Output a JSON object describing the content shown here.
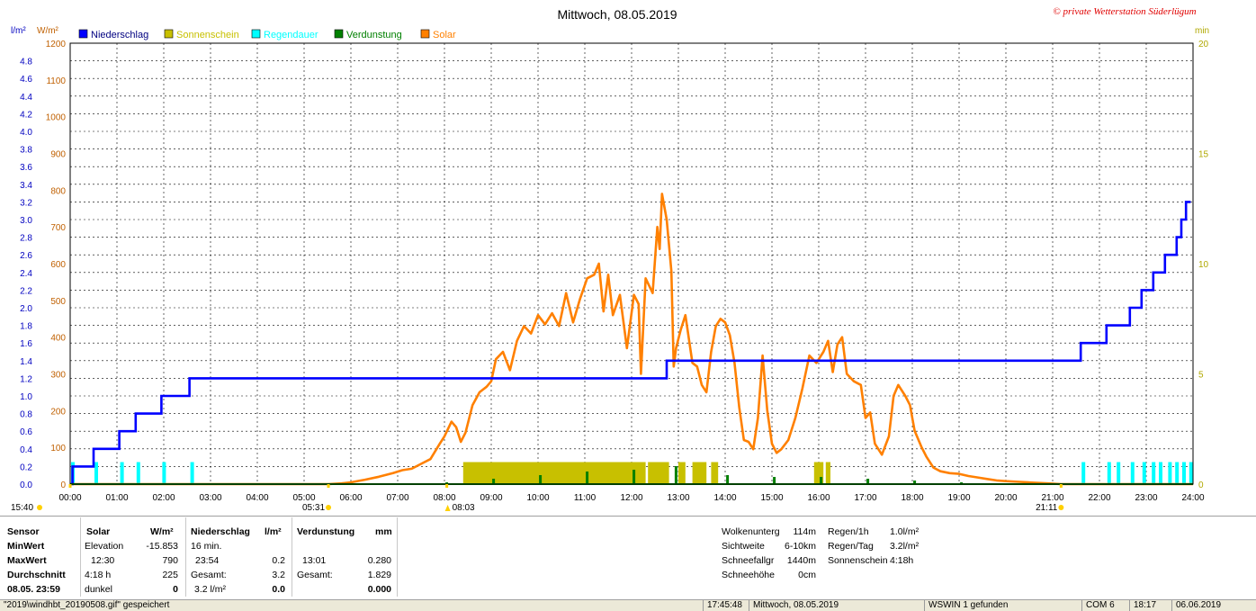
{
  "chart_data": {
    "type": "line",
    "title": "Mittwoch, 08.05.2019",
    "watermark": "© private Wetterstation Süderlügum",
    "legend": [
      {
        "name": "Niederschlag",
        "color": "#0000ff"
      },
      {
        "name": "Sonnenschein",
        "color": "#c8c000"
      },
      {
        "name": "Regendauer",
        "color": "#00ffff"
      },
      {
        "name": "Verdunstung",
        "color": "#008000"
      },
      {
        "name": "Solar",
        "color": "#ff8000"
      }
    ],
    "left_axis_rain": {
      "unit": "l/m²",
      "min": 0,
      "max": 5,
      "ticks": [
        "0.0",
        "0.2",
        "0.4",
        "0.6",
        "0.8",
        "1.0",
        "1.2",
        "1.4",
        "1.6",
        "1.8",
        "2.0",
        "2.2",
        "2.4",
        "2.6",
        "2.8",
        "3.0",
        "3.2",
        "3.4",
        "3.6",
        "3.8",
        "4.0",
        "4.2",
        "4.4",
        "4.6",
        "4.8"
      ],
      "color": "#0000c0"
    },
    "left_axis_solar": {
      "unit": "W/m²",
      "min": 0,
      "max": 1200,
      "ticks": [
        "0",
        "100",
        "200",
        "300",
        "400",
        "500",
        "600",
        "700",
        "800",
        "900",
        "1000",
        "1100",
        "1200"
      ],
      "color": "#c06000"
    },
    "right_axis": {
      "unit": "min",
      "min": 0,
      "max": 20,
      "ticks": [
        "0",
        "5",
        "10",
        "15",
        "20"
      ],
      "color": "#b0a800"
    },
    "x_ticks": [
      "00:00",
      "01:00",
      "02:00",
      "03:00",
      "04:00",
      "05:00",
      "06:00",
      "07:00",
      "08:00",
      "09:00",
      "10:00",
      "11:00",
      "12:00",
      "13:00",
      "14:00",
      "15:00",
      "16:00",
      "17:00",
      "18:00",
      "19:00",
      "20:00",
      "21:00",
      "22:00",
      "23:00",
      "24:00"
    ],
    "x_range": [
      0,
      24
    ],
    "sun_markers": [
      {
        "label": "15:40",
        "hour": 0.0
      },
      {
        "label": "05:31",
        "hour": 5.52
      },
      {
        "label": "08:03",
        "hour": 8.05
      },
      {
        "label": "21:11",
        "hour": 21.18
      }
    ],
    "niederschlag_step": [
      [
        0,
        0
      ],
      [
        0.05,
        0.2
      ],
      [
        0.5,
        0.4
      ],
      [
        1.05,
        0.6
      ],
      [
        1.4,
        0.8
      ],
      [
        1.95,
        1.0
      ],
      [
        2.55,
        1.2
      ],
      [
        12.75,
        1.4
      ],
      [
        21.6,
        1.6
      ],
      [
        22.15,
        1.8
      ],
      [
        22.65,
        2.0
      ],
      [
        22.9,
        2.2
      ],
      [
        23.15,
        2.4
      ],
      [
        23.4,
        2.6
      ],
      [
        23.65,
        2.8
      ],
      [
        23.75,
        3.0
      ],
      [
        23.85,
        3.2
      ],
      [
        23.95,
        3.2
      ]
    ],
    "solar": [
      [
        0,
        0
      ],
      [
        5.52,
        0
      ],
      [
        5.8,
        2
      ],
      [
        6.0,
        5
      ],
      [
        6.3,
        12
      ],
      [
        6.6,
        20
      ],
      [
        6.9,
        30
      ],
      [
        7.1,
        38
      ],
      [
        7.3,
        42
      ],
      [
        7.5,
        55
      ],
      [
        7.7,
        68
      ],
      [
        7.9,
        110
      ],
      [
        8.0,
        130
      ],
      [
        8.15,
        170
      ],
      [
        8.25,
        155
      ],
      [
        8.35,
        115
      ],
      [
        8.45,
        140
      ],
      [
        8.6,
        215
      ],
      [
        8.75,
        250
      ],
      [
        8.9,
        265
      ],
      [
        9.0,
        280
      ],
      [
        9.1,
        340
      ],
      [
        9.25,
        360
      ],
      [
        9.4,
        310
      ],
      [
        9.55,
        390
      ],
      [
        9.7,
        430
      ],
      [
        9.85,
        410
      ],
      [
        10.0,
        460
      ],
      [
        10.15,
        435
      ],
      [
        10.3,
        465
      ],
      [
        10.45,
        430
      ],
      [
        10.6,
        520
      ],
      [
        10.75,
        440
      ],
      [
        10.9,
        505
      ],
      [
        11.05,
        560
      ],
      [
        11.2,
        570
      ],
      [
        11.3,
        600
      ],
      [
        11.4,
        470
      ],
      [
        11.5,
        570
      ],
      [
        11.6,
        460
      ],
      [
        11.75,
        515
      ],
      [
        11.9,
        370
      ],
      [
        12.05,
        515
      ],
      [
        12.15,
        490
      ],
      [
        12.2,
        300
      ],
      [
        12.3,
        560
      ],
      [
        12.45,
        520
      ],
      [
        12.55,
        700
      ],
      [
        12.6,
        640
      ],
      [
        12.65,
        790
      ],
      [
        12.75,
        720
      ],
      [
        12.85,
        580
      ],
      [
        12.9,
        320
      ],
      [
        12.95,
        370
      ],
      [
        13.05,
        420
      ],
      [
        13.15,
        460
      ],
      [
        13.3,
        330
      ],
      [
        13.4,
        320
      ],
      [
        13.5,
        270
      ],
      [
        13.6,
        250
      ],
      [
        13.7,
        360
      ],
      [
        13.8,
        430
      ],
      [
        13.9,
        450
      ],
      [
        14.0,
        440
      ],
      [
        14.1,
        405
      ],
      [
        14.2,
        330
      ],
      [
        14.3,
        210
      ],
      [
        14.4,
        120
      ],
      [
        14.5,
        115
      ],
      [
        14.6,
        95
      ],
      [
        14.7,
        180
      ],
      [
        14.8,
        350
      ],
      [
        14.9,
        200
      ],
      [
        15.0,
        110
      ],
      [
        15.1,
        85
      ],
      [
        15.2,
        95
      ],
      [
        15.35,
        120
      ],
      [
        15.5,
        180
      ],
      [
        15.65,
        260
      ],
      [
        15.8,
        350
      ],
      [
        15.95,
        330
      ],
      [
        16.1,
        360
      ],
      [
        16.2,
        390
      ],
      [
        16.3,
        305
      ],
      [
        16.4,
        380
      ],
      [
        16.5,
        400
      ],
      [
        16.6,
        300
      ],
      [
        16.75,
        280
      ],
      [
        16.9,
        270
      ],
      [
        17.0,
        180
      ],
      [
        17.1,
        195
      ],
      [
        17.2,
        110
      ],
      [
        17.35,
        80
      ],
      [
        17.5,
        130
      ],
      [
        17.6,
        240
      ],
      [
        17.7,
        270
      ],
      [
        17.85,
        240
      ],
      [
        17.95,
        215
      ],
      [
        18.05,
        145
      ],
      [
        18.2,
        100
      ],
      [
        18.3,
        75
      ],
      [
        18.45,
        45
      ],
      [
        18.6,
        35
      ],
      [
        18.8,
        30
      ],
      [
        19.0,
        28
      ],
      [
        19.2,
        22
      ],
      [
        19.4,
        18
      ],
      [
        19.6,
        14
      ],
      [
        19.8,
        10
      ],
      [
        20.0,
        8
      ],
      [
        20.3,
        6
      ],
      [
        20.6,
        4
      ],
      [
        20.9,
        2
      ],
      [
        21.18,
        0
      ],
      [
        24,
        0
      ]
    ],
    "sonnenschein_bars": [
      [
        8.4,
        12.3
      ],
      [
        12.35,
        12.8
      ],
      [
        13.0,
        13.15
      ],
      [
        13.3,
        13.6
      ],
      [
        13.7,
        13.85
      ],
      [
        15.9,
        16.1
      ],
      [
        16.15,
        16.25
      ]
    ],
    "regendauer_bars": [
      0.0,
      0.5,
      1.05,
      1.4,
      1.95,
      2.55,
      21.6,
      22.15,
      22.35,
      22.65,
      22.9,
      23.1,
      23.25,
      23.45,
      23.6,
      23.75,
      23.9
    ],
    "verdunstung_spikes": [
      [
        8.05,
        1
      ],
      [
        9.05,
        3
      ],
      [
        10.05,
        5
      ],
      [
        11.05,
        7
      ],
      [
        12.05,
        8
      ],
      [
        12.95,
        10
      ],
      [
        14.05,
        5
      ],
      [
        15.05,
        4
      ],
      [
        16.05,
        4
      ],
      [
        17.05,
        3
      ],
      [
        18.05,
        2
      ],
      [
        19.05,
        1
      ]
    ],
    "grid": true
  },
  "info": {
    "sensor_label": "Sensor",
    "minwert_label": "MinWert",
    "maxwert_label": "MaxWert",
    "durchschnitt_label": "Durchschnitt",
    "date_label": "08.05. 23:59",
    "solar_header": "Solar",
    "solar_unit": "W/m²",
    "elevation_label": "Elevation",
    "elevation_value": "-15.853",
    "solar_max_time": "12:30",
    "solar_max_value": "790",
    "sun_hours": "4:18 h",
    "solar_avg": "225",
    "dunkel_label": "dunkel",
    "dunkel_value": "0",
    "nied_header": "Niederschlag",
    "nied_unit": "l/m²",
    "nied_min": "16 min.",
    "nied_max_time": "23:54",
    "nied_max_value": "0.2",
    "gesamt_label": "Gesamt:",
    "nied_total": "3.2",
    "nied_last_a": "3.2 l/m²",
    "nied_last_b": "0.0",
    "verd_header": "Verdunstung",
    "verd_unit": "mm",
    "verd_max_time": "13:01",
    "verd_max_value": "0.280",
    "verd_total": "1.829",
    "verd_last": "0.000",
    "wolken_label": "Wolkenunterg",
    "wolken_value": "114m",
    "sicht_label": "Sichtweite",
    "sicht_value": "6-10km",
    "schneefall_label": "Schneefallgr",
    "schneefall_value": "1440m",
    "schneehoehe_label": "Schneehöhe",
    "schneehoehe_value": "0cm",
    "regen1h_label": "Regen/1h",
    "regen1h_value": "1.0l/m²",
    "regentag_label": "Regen/Tag",
    "regentag_value": "3.2l/m²",
    "sonne_label": "Sonnenschein",
    "sonne_value": "4:18h"
  },
  "status": {
    "file": "\"2019\\windhbt_20190508.gif\" gespeichert",
    "time": "17:45:48",
    "day": "Mittwoch, 08.05.2019",
    "found": "WSWIN 1 gefunden",
    "port": "COM 6",
    "clock": "18:17",
    "date": "06.06.2019"
  }
}
